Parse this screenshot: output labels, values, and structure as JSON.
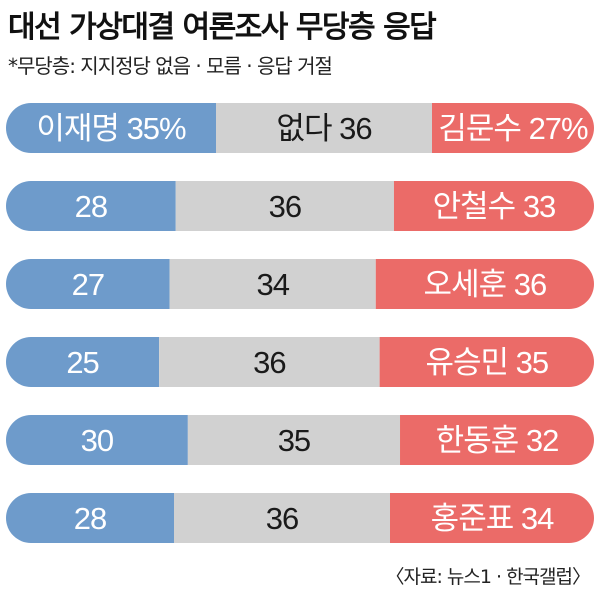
{
  "title": "대선 가상대결 여론조사 무당층 응답",
  "subtitle": "*무당층: 지지정당 없음 · 모름 · 응답 거절",
  "source": "〈자료: 뉴스1 · 한국갤럽〉",
  "colors": {
    "left": "#6e9bcb",
    "middle": "#d1d1d1",
    "right": "#eb6b68"
  },
  "chart_data": {
    "type": "bar",
    "stacked": true,
    "orientation": "horizontal",
    "segments": [
      "left",
      "middle",
      "right"
    ],
    "rows": [
      {
        "left_name": "이재명",
        "left": 35,
        "middle_name": "없다",
        "middle": 36,
        "right_name": "김문수",
        "right": 27,
        "left_label": "이재명 35%",
        "middle_label": "없다 36",
        "right_label": "김문수 27%"
      },
      {
        "left_name": "",
        "left": 28,
        "middle_name": "",
        "middle": 36,
        "right_name": "안철수",
        "right": 33,
        "left_label": "28",
        "middle_label": "36",
        "right_label": "안철수 33"
      },
      {
        "left_name": "",
        "left": 27,
        "middle_name": "",
        "middle": 34,
        "right_name": "오세훈",
        "right": 36,
        "left_label": "27",
        "middle_label": "34",
        "right_label": "오세훈 36"
      },
      {
        "left_name": "",
        "left": 25,
        "middle_name": "",
        "middle": 36,
        "right_name": "유승민",
        "right": 35,
        "left_label": "25",
        "middle_label": "36",
        "right_label": "유승민 35"
      },
      {
        "left_name": "",
        "left": 30,
        "middle_name": "",
        "middle": 35,
        "right_name": "한동훈",
        "right": 32,
        "left_label": "30",
        "middle_label": "35",
        "right_label": "한동훈 32"
      },
      {
        "left_name": "",
        "left": 28,
        "middle_name": "",
        "middle": 36,
        "right_name": "홍준표",
        "right": 34,
        "left_label": "28",
        "middle_label": "36",
        "right_label": "홍준표 34"
      }
    ]
  }
}
